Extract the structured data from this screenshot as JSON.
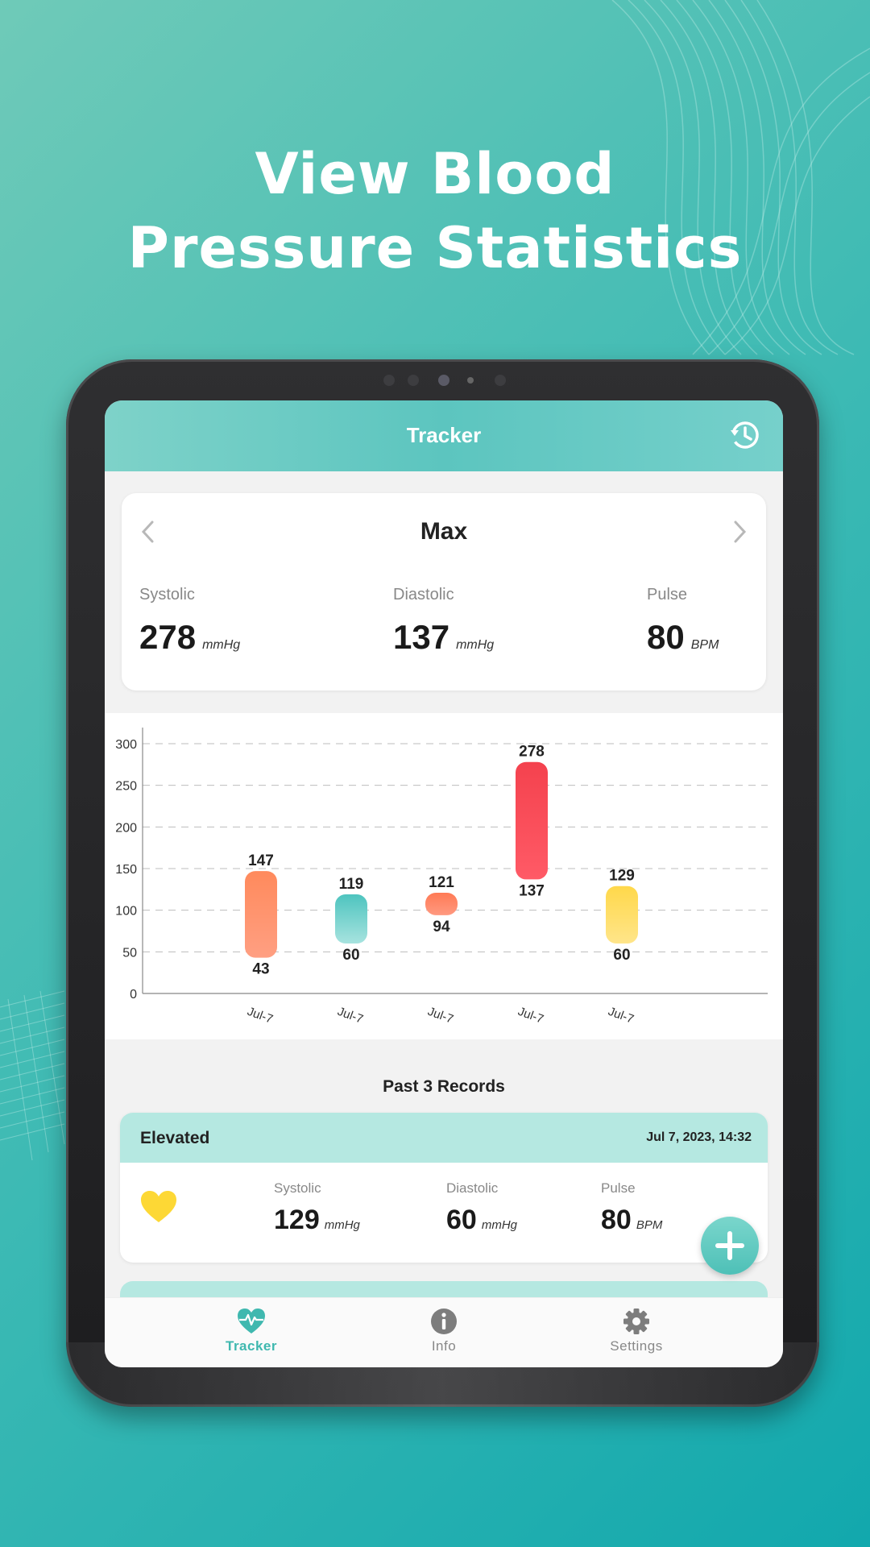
{
  "headline": {
    "line1": "View Blood",
    "line2": "Pressure Statistics"
  },
  "app_bar": {
    "title": "Tracker",
    "history_icon": "history-icon"
  },
  "stats_card": {
    "title": "Max",
    "systolic": {
      "label": "Systolic",
      "value": "278",
      "unit": "mmHg"
    },
    "diastolic": {
      "label": "Diastolic",
      "value": "137",
      "unit": "mmHg"
    },
    "pulse": {
      "label": "Pulse",
      "value": "80",
      "unit": "BPM"
    }
  },
  "chart_data": {
    "type": "bar",
    "subtype": "floating-range",
    "y_ticks": [
      0,
      50,
      100,
      150,
      200,
      250,
      300
    ],
    "ylim": [
      0,
      300
    ],
    "grid": true,
    "categories": [
      "Jul-7",
      "Jul-7",
      "Jul-7",
      "Jul-7",
      "Jul-7"
    ],
    "bars": [
      {
        "high": 147,
        "low": 43,
        "color_top": "#ff8a5c",
        "color_bottom": "#ff9f82"
      },
      {
        "high": 119,
        "low": 60,
        "color_top": "#4ec4bf",
        "color_bottom": "#a7e3df"
      },
      {
        "high": 121,
        "low": 94,
        "color_top": "#ff7a55",
        "color_bottom": "#ff9980"
      },
      {
        "high": 278,
        "low": 137,
        "color_top": "#f4424e",
        "color_bottom": "#ff5a66"
      },
      {
        "high": 129,
        "low": 60,
        "color_top": "#ffd84a",
        "color_bottom": "#ffe58a"
      }
    ]
  },
  "records": {
    "title": "Past 3 Records",
    "items": [
      {
        "status": "Elevated",
        "date": "Jul 7, 2023, 14:32",
        "heart_color": "#fdd835",
        "systolic": {
          "label": "Systolic",
          "value": "129",
          "unit": "mmHg"
        },
        "diastolic": {
          "label": "Diastolic",
          "value": "60",
          "unit": "mmHg"
        },
        "pulse": {
          "label": "Pulse",
          "value": "80",
          "unit": "BPM"
        }
      }
    ]
  },
  "bottom_nav": {
    "items": [
      {
        "label": "Tracker",
        "icon": "heart-pulse-icon",
        "active": true
      },
      {
        "label": "Info",
        "icon": "info-icon",
        "active": false
      },
      {
        "label": "Settings",
        "icon": "gear-icon",
        "active": false
      }
    ]
  },
  "colors": {
    "accent": "#3fb8af",
    "app_bar": "#5cc5bf",
    "record_header": "#b5e8e1"
  }
}
